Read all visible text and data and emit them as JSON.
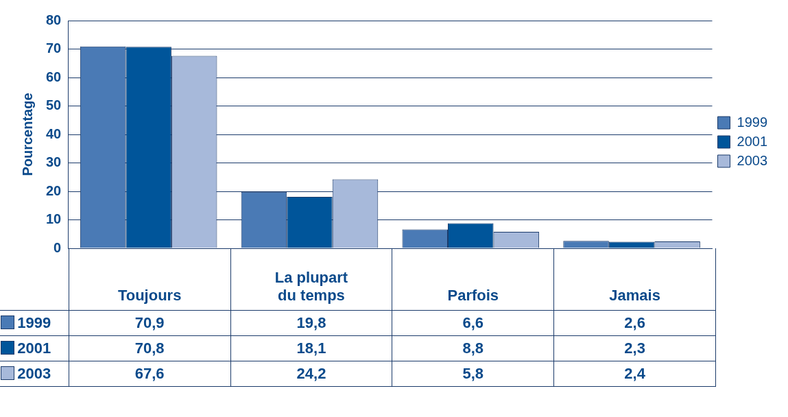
{
  "chart_data": {
    "type": "bar",
    "ylabel": "Pourcentage",
    "categories": [
      "Toujours",
      "La plupart du temps",
      "Parfois",
      "Jamais"
    ],
    "series": [
      {
        "name": "1999",
        "color": "#4a7ab5",
        "values": [
          70.9,
          19.8,
          6.6,
          2.6
        ],
        "value_labels": [
          "70,9",
          "19,8",
          "6,6",
          "2,6"
        ]
      },
      {
        "name": "2001",
        "color": "#00559a",
        "values": [
          70.8,
          18.1,
          8.8,
          2.3
        ],
        "value_labels": [
          "70,8",
          "18,1",
          "8,8",
          "2,3"
        ]
      },
      {
        "name": "2003",
        "color": "#a7b9da",
        "values": [
          67.6,
          24.2,
          5.8,
          2.4
        ],
        "value_labels": [
          "67,6",
          "24,2",
          "5,8",
          "2,4"
        ]
      }
    ],
    "ylim": [
      0,
      80
    ],
    "yticks": [
      0,
      10,
      20,
      30,
      40,
      50,
      60,
      70,
      80
    ],
    "grid": "y",
    "legend": "right"
  }
}
